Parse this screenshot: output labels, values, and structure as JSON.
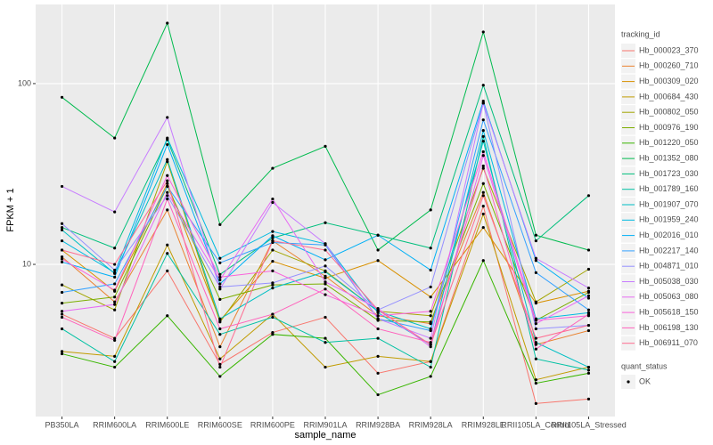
{
  "chart_data": {
    "type": "line",
    "x_label": "sample_name",
    "y_label": "FPKM + 1",
    "categories": [
      "PB350LA",
      "RRIM600LA",
      "RRIM600LE",
      "RRIM600SE",
      "RRIM600PE",
      "RRIM901LA",
      "RRIM928BA",
      "RRIM928LA",
      "RRIM928LE",
      "RRII105LA_Control",
      "RRII105LA_Stressed"
    ],
    "log_scale": true,
    "grid": true,
    "legend_position": "right",
    "ylim": [
      1.44,
      274
    ],
    "yticks": [
      10,
      100
    ],
    "legend_title": "tracking_id",
    "series": [
      {
        "name": "Hb_000023_370",
        "color": "#F8766D",
        "values": [
          5.3,
          3.9,
          9.2,
          2.8,
          4.2,
          5.1,
          2.5,
          2.9,
          21,
          1.7,
          1.8
        ]
      },
      {
        "name": "Hb_000260_710",
        "color": "#EA8331",
        "values": [
          11,
          6.2,
          20,
          3.5,
          13.5,
          8.6,
          5.2,
          4.7,
          25,
          3.6,
          4.3
        ]
      },
      {
        "name": "Hb_000309_020",
        "color": "#D89000",
        "values": [
          12,
          7.1,
          28,
          4.9,
          10.4,
          8.4,
          10.5,
          6.6,
          16,
          6.1,
          7.1
        ]
      },
      {
        "name": "Hb_000684_430",
        "color": "#C09B00",
        "values": [
          3.3,
          3.1,
          12.8,
          3.0,
          5.3,
          2.7,
          3.1,
          2.9,
          19,
          2.3,
          2.7
        ]
      },
      {
        "name": "Hb_000802_050",
        "color": "#A3A500",
        "values": [
          7.7,
          5.6,
          37,
          4.8,
          12,
          9.2,
          5.5,
          5.2,
          34,
          6.2,
          9.4
        ]
      },
      {
        "name": "Hb_000976_190",
        "color": "#7CAE00",
        "values": [
          6.1,
          6.6,
          27,
          6.4,
          7.7,
          7.8,
          4.9,
          4.8,
          28,
          4.9,
          7.0
        ]
      },
      {
        "name": "Hb_001220_050",
        "color": "#39B600",
        "values": [
          3.2,
          2.7,
          5.2,
          2.4,
          4.1,
          3.9,
          1.9,
          2.4,
          10.5,
          2.2,
          2.5
        ]
      },
      {
        "name": "Hb_001352_080",
        "color": "#00BB4E",
        "values": [
          84,
          50,
          216,
          16.6,
          34,
          45,
          12,
          20,
          193,
          14.5,
          12
        ]
      },
      {
        "name": "Hb_001723_030",
        "color": "#00BF7D",
        "values": [
          16,
          12.3,
          49,
          8.8,
          14,
          17,
          14.5,
          12.3,
          98,
          13.5,
          24
        ]
      },
      {
        "name": "Hb_001789_160",
        "color": "#00C1A3",
        "values": [
          4.4,
          2.9,
          11.5,
          4.1,
          5.1,
          3.7,
          3.9,
          2.7,
          51,
          3.0,
          2.6
        ]
      },
      {
        "name": "Hb_001907_070",
        "color": "#00BFC4",
        "values": [
          15.5,
          8.9,
          38,
          5.0,
          7.4,
          9.1,
          5.5,
          4.4,
          48,
          3.7,
          2.7
        ]
      },
      {
        "name": "Hb_001959_240",
        "color": "#00BAE0",
        "values": [
          13.5,
          9.0,
          50,
          10.8,
          15.2,
          13,
          5.4,
          3.6,
          55,
          5.0,
          5.4
        ]
      },
      {
        "name": "Hb_002016_010",
        "color": "#00B0F6",
        "values": [
          10.3,
          8.5,
          46,
          7.8,
          14.4,
          10.6,
          14.5,
          9.3,
          80,
          10.5,
          6.5
        ]
      },
      {
        "name": "Hb_002217_140",
        "color": "#35A2FF",
        "values": [
          7.0,
          7.8,
          27,
          10.2,
          13.2,
          12.8,
          5.0,
          4.3,
          63,
          9.0,
          5.6
        ]
      },
      {
        "name": "Hb_004871_010",
        "color": "#9590FF",
        "values": [
          16.8,
          9.3,
          24,
          7.5,
          7.9,
          9.8,
          5.6,
          7.5,
          78,
          4.4,
          4.6
        ]
      },
      {
        "name": "Hb_005038_030",
        "color": "#C77CFF",
        "values": [
          27,
          19.5,
          65,
          7.3,
          22,
          13,
          5.0,
          3.9,
          78,
          10.8,
          7.4
        ]
      },
      {
        "name": "Hb_005063_080",
        "color": "#E76BF3",
        "values": [
          5.5,
          6.0,
          25,
          8.2,
          23,
          8.0,
          5.7,
          3.5,
          40,
          4.7,
          6.7
        ]
      },
      {
        "name": "Hb_005618_150",
        "color": "#FA62DB",
        "values": [
          10.7,
          7.2,
          31,
          8.5,
          9.2,
          6.8,
          5.2,
          5.5,
          42,
          4.9,
          5.2
        ]
      },
      {
        "name": "Hb_006198_130",
        "color": "#FF62BC",
        "values": [
          5.1,
          3.8,
          23,
          4.4,
          5.3,
          7.3,
          4.4,
          3.7,
          35,
          3.4,
          5.3
        ]
      },
      {
        "name": "Hb_006911_070",
        "color": "#FF6C91",
        "values": [
          12,
          10,
          29,
          2.7,
          13.5,
          12,
          5.6,
          3.6,
          24,
          3.9,
          4.6
        ]
      }
    ],
    "quant_legend": {
      "title": "quant_status",
      "labels": [
        "OK"
      ]
    }
  }
}
